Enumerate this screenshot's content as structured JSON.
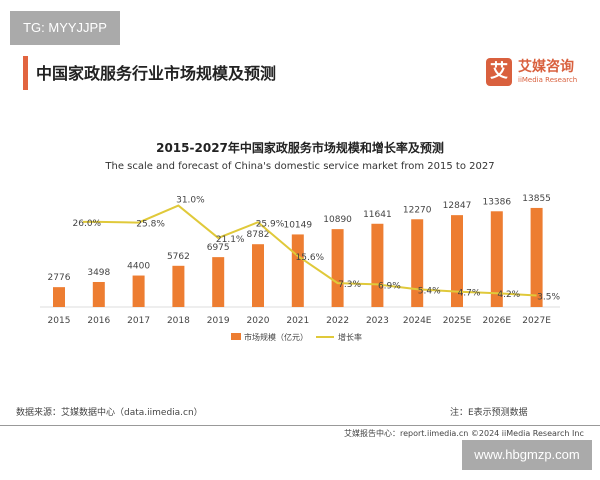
{
  "watermark_top": "TG: MYYJJPP",
  "page_title": "中国家政服务行业市场规模及预测",
  "logo": {
    "icon_char": "艾",
    "cn": "艾媒咨询",
    "en": "iiMedia Research"
  },
  "footer": {
    "source": "数据来源：艾媒数据中心（data.iimedia.cn）",
    "note": "注：E表示预测数据",
    "report": "艾媒报告中心：report.iimedia.cn    ©2024  iiMedia Research  Inc",
    "watermark_bottom": "www.hbgmzp.com"
  },
  "colors": {
    "bar": "#ed7d31",
    "line": "#e0c93a",
    "accent": "#e2643f"
  },
  "chart_data": {
    "type": "bar+line",
    "title": "2015-2027年中国家政服务市场规模和增长率及预测",
    "subtitle": "The scale and forecast of China's domestic service market from 2015 to 2027",
    "categories": [
      "2015",
      "2016",
      "2017",
      "2018",
      "2019",
      "2020",
      "2021",
      "2022",
      "2023",
      "2024E",
      "2025E",
      "2026E",
      "2027E"
    ],
    "series": [
      {
        "name": "市场规模（亿元）",
        "type": "bar",
        "values": [
          2776,
          3498,
          4400,
          5762,
          6975,
          8782,
          10149,
          10890,
          11641,
          12270,
          12847,
          13386,
          13855
        ],
        "labels": [
          "2776",
          "3498",
          "4400",
          "5762",
          "6975",
          "8782",
          "10149",
          "10890",
          "11641",
          "12270",
          "12847",
          "13386",
          "13855"
        ]
      },
      {
        "name": "增长率",
        "type": "line",
        "values": [
          null,
          26.0,
          25.8,
          31.0,
          21.1,
          25.9,
          15.6,
          7.3,
          6.9,
          5.4,
          4.7,
          4.2,
          3.5
        ],
        "labels": [
          "",
          "26.0%",
          "25.8%",
          "31.0%",
          "21.1%",
          "25.9%",
          "15.6%",
          "7.3%",
          "6.9%",
          "5.4%",
          "4.7%",
          "4.2%",
          "3.5%"
        ]
      }
    ],
    "grid": false,
    "legend": "bottom"
  }
}
